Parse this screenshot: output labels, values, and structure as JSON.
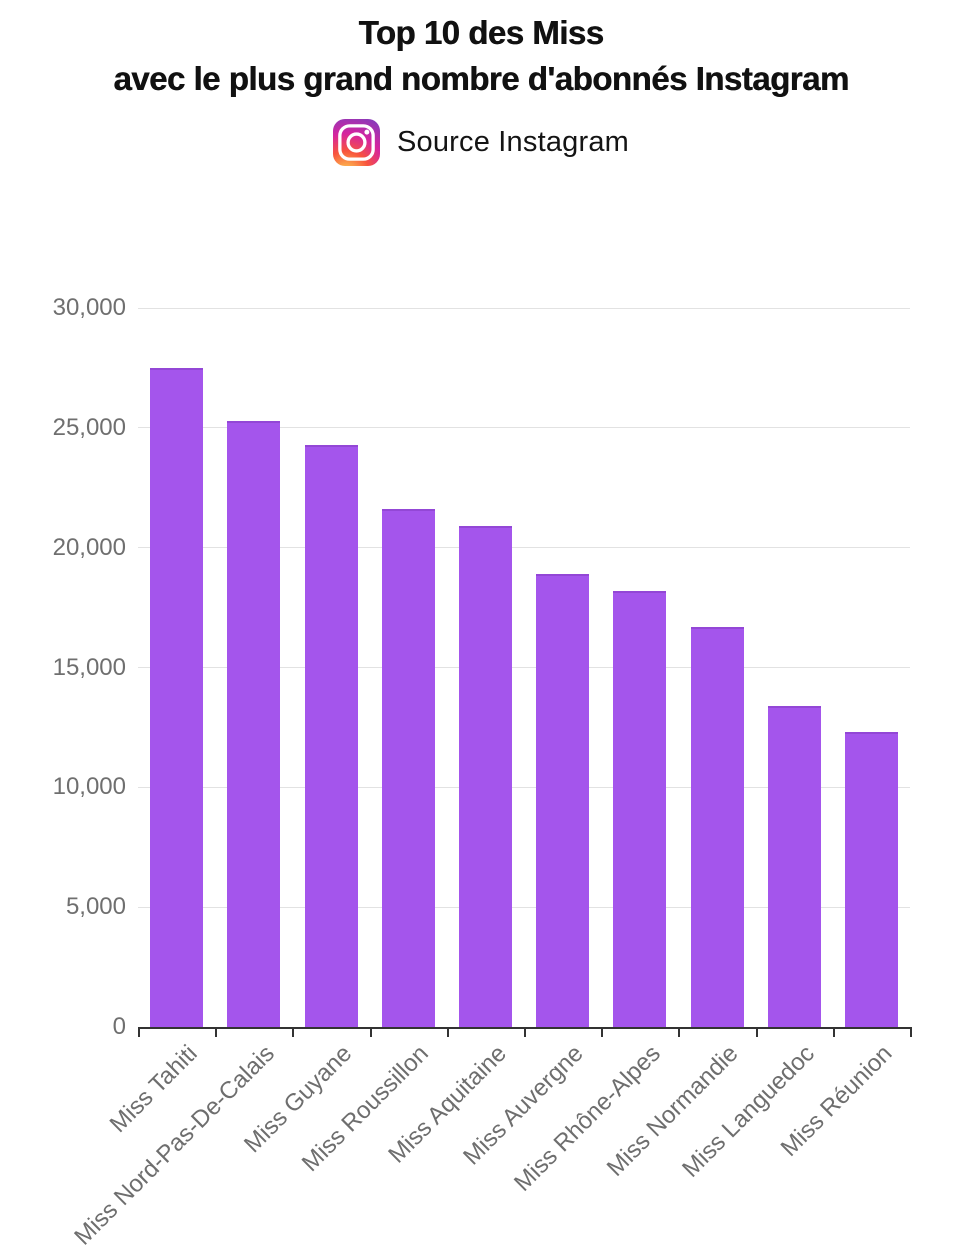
{
  "header": {
    "title_line1": "Top 10 des Miss",
    "title_line2": "avec le plus grand nombre d'abonnés Instagram",
    "source_label": "Source Instagram",
    "source_icon": "instagram-icon"
  },
  "chart_data": {
    "type": "bar",
    "title": "Top 10 des Miss avec le plus grand nombre d'abonnés Instagram",
    "subtitle": "Source Instagram",
    "categories": [
      "Miss Tahiti",
      "Miss Nord-Pas-De-Calais",
      "Miss Guyane",
      "Miss Roussillon",
      "Miss Aquitaine",
      "Miss Auvergne",
      "Miss Rhône-Alpes",
      "Miss Normandie",
      "Miss Languedoc",
      "Miss Réunion"
    ],
    "values": [
      27500,
      25300,
      24300,
      21600,
      20900,
      18900,
      18200,
      16700,
      13400,
      12300
    ],
    "xlabel": "",
    "ylabel": "",
    "ylim": [
      0,
      30000
    ],
    "ytick_interval": 5000,
    "yticks": [
      0,
      5000,
      10000,
      15000,
      20000,
      25000,
      30000
    ],
    "ytick_labels": [
      "0",
      "5,000",
      "10,000",
      "15,000",
      "20,000",
      "25,000",
      "30,000"
    ],
    "grid": true,
    "legend": null,
    "bar_color": "#A455EC",
    "bar_edge_color": "#9347D6",
    "grid_color": "#E2E2E2",
    "axis_color": "#333333",
    "tick_label_color": "#6F6F6F"
  }
}
